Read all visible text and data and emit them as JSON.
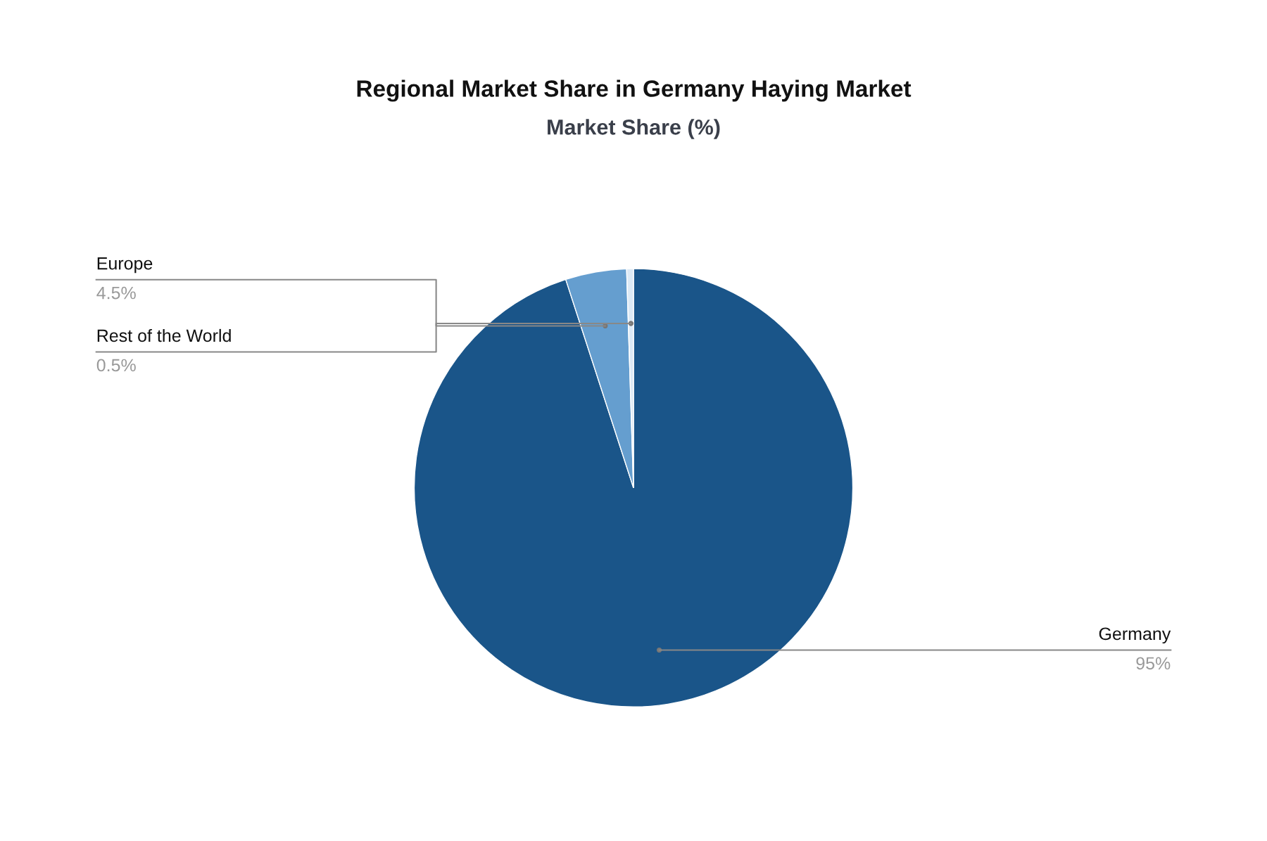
{
  "chart_data": {
    "type": "pie",
    "title": "Regional Market Share in Germany Haying Market",
    "subtitle": "Market Share (%)",
    "categories": [
      "Germany",
      "Europe",
      "Rest of the World"
    ],
    "values": [
      95,
      4.5,
      0.5
    ],
    "value_labels": [
      "95%",
      "4.5%",
      "0.5%"
    ],
    "colors": [
      "#1a5589",
      "#659ecf",
      "#dce9f5"
    ]
  }
}
